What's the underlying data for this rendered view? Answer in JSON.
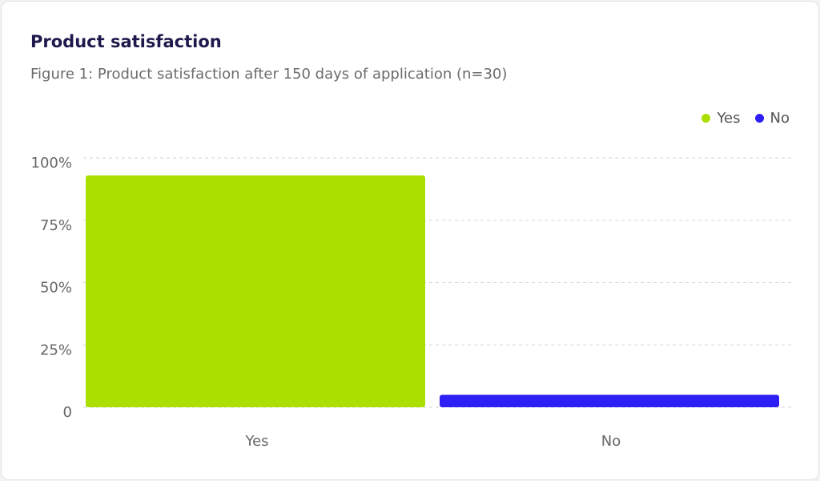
{
  "chart_data": {
    "type": "bar",
    "title": "Product satisfaction",
    "subtitle": "Figure 1: Product satisfaction after 150 days of application (n=30)",
    "categories": [
      "Yes",
      "No"
    ],
    "values": [
      93,
      5
    ],
    "colors": [
      "#aadf00",
      "#2e1ff5"
    ],
    "legend": [
      {
        "label": "Yes",
        "color": "#aadf00"
      },
      {
        "label": "No",
        "color": "#2e1ff5"
      }
    ],
    "legend_position": "top-right",
    "yticks": [
      {
        "value": 100,
        "label": "100%"
      },
      {
        "value": 75,
        "label": "75%"
      },
      {
        "value": 50,
        "label": "50%"
      },
      {
        "value": 25,
        "label": "25%"
      },
      {
        "value": 0,
        "label": "0"
      }
    ],
    "ylim": [
      0,
      100
    ],
    "xlabel": "",
    "ylabel": "",
    "grid": true
  }
}
